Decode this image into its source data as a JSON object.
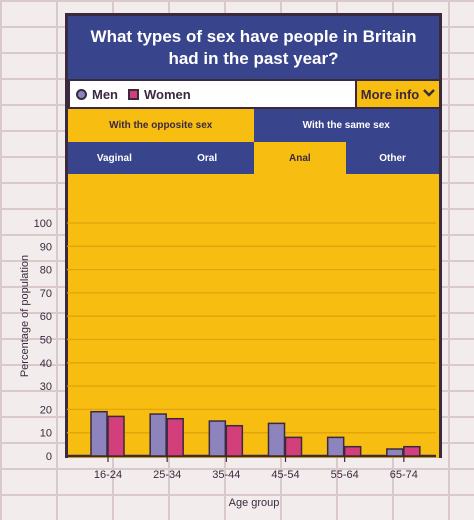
{
  "title": "What types of sex have people in Britain had in the past year?",
  "legend": {
    "men_label": "Men",
    "women_label": "Women"
  },
  "more_info_label": "More info",
  "tabs_partner": [
    {
      "label": "With the opposite sex",
      "active": true
    },
    {
      "label": "With the same sex",
      "active": false
    }
  ],
  "tabs_type": [
    {
      "label": "Vaginal",
      "active": false
    },
    {
      "label": "Oral",
      "active": false
    },
    {
      "label": "Anal",
      "active": true
    },
    {
      "label": "Other",
      "active": false
    }
  ],
  "colors": {
    "men": "#8d84bd",
    "women": "#d33f7a",
    "panel": "#f7bd10",
    "navy": "#38448c",
    "dark": "#3b2a3e"
  },
  "chart_data": {
    "type": "bar",
    "xlabel": "Age group",
    "ylabel": "Percentage of population",
    "ylim": [
      0,
      100
    ],
    "yticks": [
      0,
      10,
      20,
      30,
      40,
      50,
      60,
      70,
      80,
      90,
      100
    ],
    "grid": true,
    "categories": [
      "16-24",
      "25-34",
      "35-44",
      "45-54",
      "55-64",
      "65-74"
    ],
    "series": [
      {
        "name": "Men",
        "values": [
          19,
          18,
          15,
          14,
          8,
          3
        ]
      },
      {
        "name": "Women",
        "values": [
          17,
          16,
          13,
          8,
          4,
          4
        ]
      }
    ]
  }
}
